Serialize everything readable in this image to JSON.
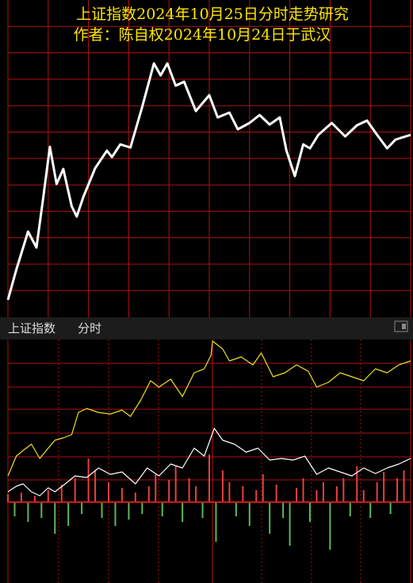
{
  "chart_data": [
    {
      "type": "line",
      "title": "上证指数2024年10月25日分时走势研究",
      "subtitle": "作者：陈自权2024年10月24日于武汉",
      "xlim": [
        0,
        240
      ],
      "ylim": [
        0,
        400
      ],
      "series": [
        {
          "color": "#ffffff",
          "x": [
            0,
            5,
            12,
            17,
            21,
            25,
            29,
            33,
            38,
            41,
            45,
            52,
            59,
            62,
            67,
            73,
            80,
            87,
            91,
            95,
            100,
            105,
            112,
            116,
            120,
            125,
            132,
            137,
            144,
            150,
            156,
            162,
            166,
            171,
            176,
            180,
            185,
            193,
            201,
            208,
            214,
            220,
            226,
            231,
            240
          ],
          "values": [
            22,
            60,
            108,
            88,
            150,
            215,
            168,
            187,
            140,
            127,
            152,
            188,
            210,
            202,
            218,
            214,
            265,
            320,
            305,
            320,
            292,
            297,
            260,
            270,
            280,
            252,
            258,
            237,
            245,
            255,
            243,
            252,
            210,
            178,
            218,
            213,
            230,
            245,
            228,
            242,
            248,
            230,
            213,
            224,
            230
          ]
        }
      ]
    },
    {
      "type": "intraday",
      "title": "上证指数",
      "subtitle": "分时",
      "xlim": [
        0,
        240
      ],
      "ylim": [
        -102,
        205
      ],
      "series": [
        {
          "kind": "line",
          "color": "#f0e020",
          "x": [
            0,
            5,
            9,
            14,
            19,
            24,
            28,
            33,
            38,
            42,
            47,
            54,
            61,
            68,
            73,
            79,
            85,
            90,
            97,
            104,
            111,
            117,
            121,
            122,
            128,
            132,
            139,
            146,
            151,
            158,
            165,
            172,
            179,
            184,
            191,
            198,
            205,
            212,
            219,
            226,
            233,
            240
          ],
          "values": [
            33,
            58,
            65,
            73,
            55,
            68,
            78,
            81,
            85,
            113,
            118,
            113,
            111,
            116,
            108,
            128,
            153,
            145,
            155,
            133,
            163,
            168,
            185,
            203,
            193,
            178,
            183,
            173,
            188,
            158,
            163,
            173,
            165,
            145,
            151,
            163,
            158,
            153,
            168,
            163,
            173,
            178
          ]
        },
        {
          "kind": "line",
          "color": "#ffffff",
          "x": [
            0,
            5,
            9,
            14,
            19,
            24,
            28,
            33,
            40,
            47,
            54,
            61,
            68,
            76,
            83,
            90,
            97,
            104,
            111,
            117,
            123,
            128,
            135,
            142,
            149,
            156,
            163,
            170,
            177,
            184,
            191,
            198,
            205,
            212,
            219,
            226,
            233,
            240
          ],
          "values": [
            13,
            20,
            23,
            13,
            8,
            18,
            13,
            21,
            33,
            31,
            43,
            35,
            38,
            23,
            43,
            33,
            48,
            43,
            68,
            58,
            93,
            78,
            73,
            63,
            68,
            53,
            55,
            53,
            58,
            35,
            43,
            38,
            33,
            43,
            36,
            43,
            48,
            55
          ]
        },
        {
          "kind": "bar",
          "up_color": "#e8413c",
          "down_color": "#5cb85c",
          "x": [
            0,
            4,
            8,
            12,
            16,
            20,
            24,
            28,
            32,
            36,
            40,
            44,
            48,
            52,
            56,
            60,
            64,
            68,
            72,
            76,
            80,
            84,
            88,
            92,
            96,
            100,
            104,
            108,
            112,
            116,
            120,
            124,
            128,
            132,
            136,
            140,
            144,
            148,
            152,
            156,
            160,
            164,
            168,
            172,
            176,
            180,
            184,
            188,
            192,
            196,
            200,
            204,
            208,
            212,
            216,
            220,
            224,
            228,
            232,
            236
          ],
          "values": [
            10,
            -18,
            12,
            -25,
            8,
            -20,
            15,
            -40,
            22,
            -30,
            30,
            -15,
            55,
            40,
            -20,
            25,
            -30,
            18,
            -22,
            12,
            -15,
            20,
            35,
            -18,
            28,
            45,
            -25,
            30,
            20,
            -20,
            60,
            -50,
            40,
            25,
            -18,
            20,
            -30,
            15,
            35,
            -40,
            22,
            -20,
            -55,
            18,
            30,
            -25,
            15,
            25,
            -60,
            20,
            30,
            -18,
            45,
            15,
            -20,
            25,
            38,
            -15,
            30,
            40
          ]
        }
      ]
    }
  ]
}
